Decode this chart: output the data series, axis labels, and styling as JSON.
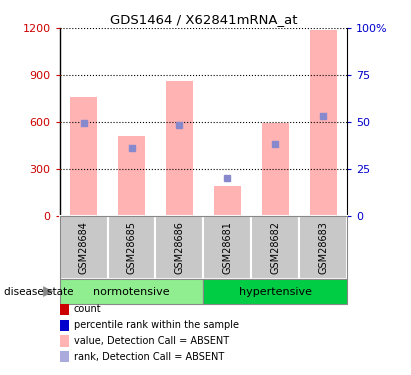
{
  "title": "GDS1464 / X62841mRNA_at",
  "samples": [
    "GSM28684",
    "GSM28685",
    "GSM28686",
    "GSM28681",
    "GSM28682",
    "GSM28683"
  ],
  "bar_values": [
    760,
    510,
    860,
    190,
    590,
    1190
  ],
  "bar_color": "#FFB3B3",
  "percentile_values": [
    590,
    430,
    580,
    240,
    460,
    640
  ],
  "percentile_color": "#8888CC",
  "left_yticks": [
    0,
    300,
    600,
    900,
    1200
  ],
  "right_yticks": [
    0,
    25,
    50,
    75,
    100
  ],
  "right_yticklabels": [
    "0",
    "25",
    "50",
    "75",
    "100%"
  ],
  "ylim_left": [
    0,
    1200
  ],
  "ylim_right": [
    0,
    100
  ],
  "normotensive_color": "#90EE90",
  "hypertensive_color": "#00CC44",
  "left_axis_color": "#CC0000",
  "right_axis_color": "#0000CC",
  "sample_box_color": "#C8C8C8",
  "legend_items": [
    {
      "label": "count",
      "color": "#CC0000"
    },
    {
      "label": "percentile rank within the sample",
      "color": "#0000CC"
    },
    {
      "label": "value, Detection Call = ABSENT",
      "color": "#FFB3B3"
    },
    {
      "label": "rank, Detection Call = ABSENT",
      "color": "#AAAADD"
    }
  ]
}
